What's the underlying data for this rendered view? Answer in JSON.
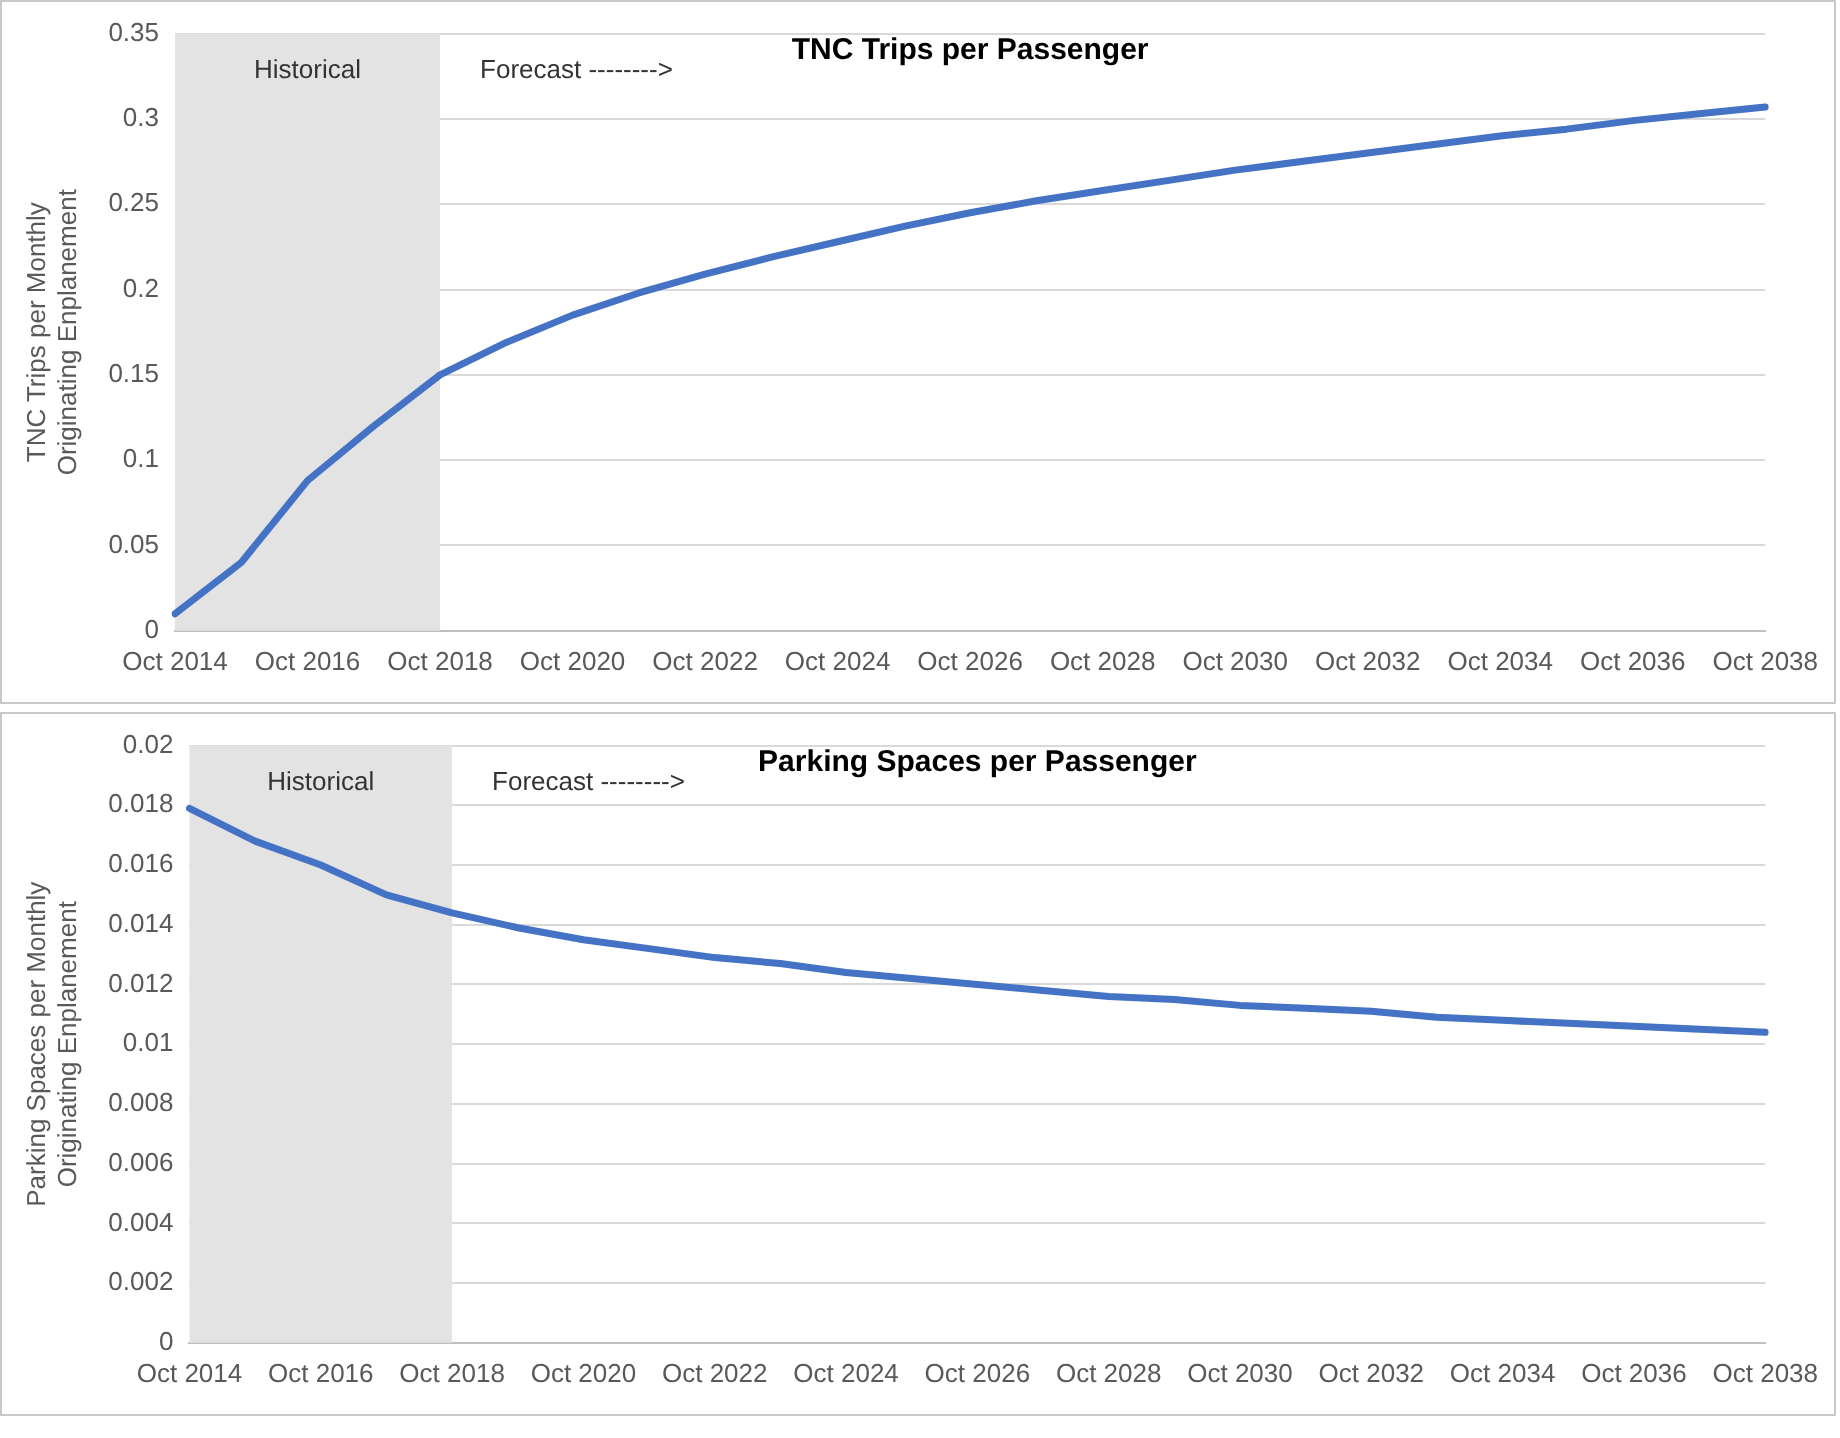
{
  "chart_data": [
    {
      "type": "line",
      "title": "TNC Trips per Passenger",
      "ylabel": "TNC Trips per Monthly\nOriginating Enplanement",
      "categories": [
        "Oct 2014",
        null,
        "Oct 2016",
        null,
        "Oct 2018",
        null,
        "Oct 2020",
        null,
        "Oct 2022",
        null,
        "Oct 2024",
        null,
        "Oct 2026",
        null,
        "Oct 2028",
        null,
        "Oct 2030",
        null,
        "Oct 2032",
        null,
        "Oct 2034",
        null,
        "Oct 2036",
        null,
        "Oct 2038"
      ],
      "series": [
        {
          "color": "#4472c4",
          "values": [
            0.01,
            0.04,
            0.088,
            0.12,
            0.15,
            0.169,
            0.185,
            0.198,
            0.209,
            0.219,
            0.228,
            0.237,
            0.245,
            0.252,
            0.258,
            0.264,
            0.27,
            0.275,
            0.28,
            0.285,
            0.29,
            0.294,
            0.299,
            0.303,
            0.307
          ]
        }
      ],
      "ylim": [
        0,
        0.35
      ],
      "yticks": [
        0,
        0.05,
        0.1,
        0.15,
        0.2,
        0.25,
        0.3,
        0.35
      ],
      "grid": "y",
      "legend": false,
      "marker": "none",
      "line_style": "solid",
      "bands": [
        {
          "axis": "x",
          "from": "Oct 2014",
          "to": "Oct 2018",
          "label": "Historical",
          "color": "#e3e3e3"
        }
      ],
      "annotations": [
        "Forecast -------->"
      ]
    },
    {
      "type": "line",
      "title": "Parking Spaces per Passenger",
      "ylabel": "Parking Spaces per Monthly\nOriginating Enplanement",
      "categories": [
        "Oct 2014",
        null,
        "Oct 2016",
        null,
        "Oct 2018",
        null,
        "Oct 2020",
        null,
        "Oct 2022",
        null,
        "Oct 2024",
        null,
        "Oct 2026",
        null,
        "Oct 2028",
        null,
        "Oct 2030",
        null,
        "Oct 2032",
        null,
        "Oct 2034",
        null,
        "Oct 2036",
        null,
        "Oct 2038"
      ],
      "series": [
        {
          "color": "#4472c4",
          "values": [
            0.0179,
            0.0168,
            0.016,
            0.015,
            0.0144,
            0.0139,
            0.0135,
            0.0132,
            0.0129,
            0.0127,
            0.0124,
            0.0122,
            0.012,
            0.0118,
            0.0116,
            0.0115,
            0.0113,
            0.0112,
            0.0111,
            0.0109,
            0.0108,
            0.0107,
            0.0106,
            0.0105,
            0.0104
          ]
        }
      ],
      "ylim": [
        0,
        0.02
      ],
      "yticks": [
        0,
        0.002,
        0.004,
        0.006,
        0.008,
        0.01,
        0.012,
        0.014,
        0.016,
        0.018,
        0.02
      ],
      "grid": "y",
      "legend": false,
      "marker": "none",
      "line_style": "solid",
      "bands": [
        {
          "axis": "x",
          "from": "Oct 2014",
          "to": "Oct 2018",
          "label": "Historical",
          "color": "#e3e3e3"
        }
      ],
      "annotations": [
        "Forecast -------->"
      ]
    }
  ]
}
